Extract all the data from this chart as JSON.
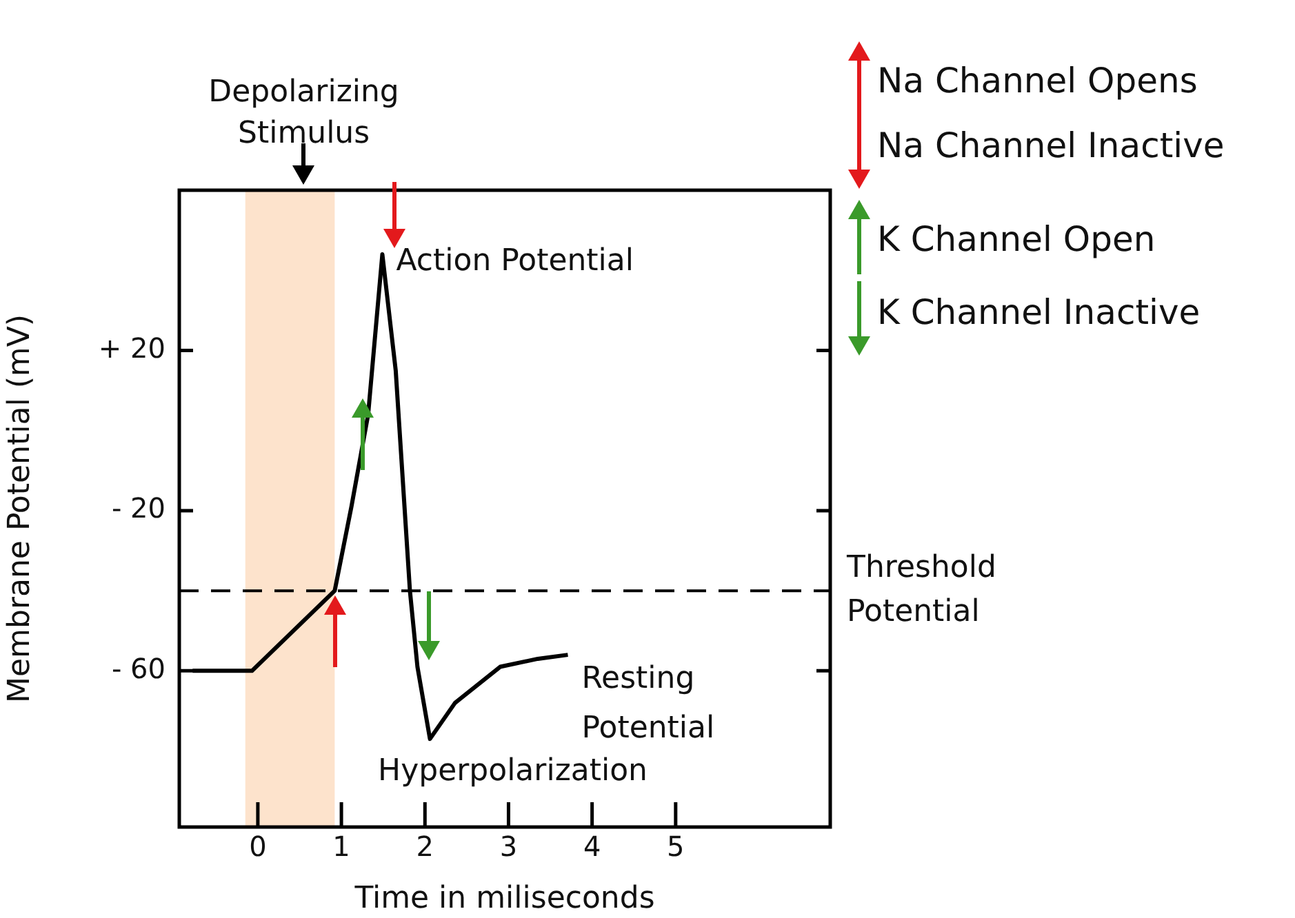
{
  "chart_data": {
    "type": "line",
    "xlabel": "Time in miliseconds",
    "ylabel": "Membrane Potential (mV)",
    "x": [
      -0.78,
      -0.07,
      0.92,
      1.12,
      1.32,
      1.49,
      1.65,
      1.82,
      1.91,
      2.06,
      2.36,
      2.9,
      3.35,
      3.71
    ],
    "series": [
      {
        "color": "#000000",
        "values": [
          -60,
          -60,
          -40,
          -19,
          4,
          44,
          15,
          -40,
          -59,
          -77,
          -68,
          -59,
          -57,
          -56
        ]
      }
    ],
    "xlim": [
      -0.94,
      6.85
    ],
    "xticks": [
      0,
      1,
      2,
      3,
      4,
      5
    ],
    "ylim": [
      -99,
      60
    ],
    "yticks": [
      {
        "value": 20,
        "label": "+ 20"
      },
      {
        "value": -20,
        "label": "- 20"
      },
      {
        "value": -60,
        "label": "- 60"
      }
    ],
    "ref_lines": [
      {
        "axis": "y",
        "value": -40,
        "label": "Threshold Potential",
        "line_style": "dashed",
        "color": "#000000"
      }
    ],
    "bands": [
      {
        "axis": "x",
        "from": -0.15,
        "to": 0.92,
        "label": "Depolarizing Stimulus",
        "color": "#fde3cc"
      }
    ],
    "annotations": [
      "Na Channel Opens",
      "Na Channel Inactive",
      "K Channel Open",
      "K Channel Inactive",
      {
        "text": "Action Potential",
        "x": 1.49,
        "y": 44
      },
      {
        "text": "Resting Potential",
        "x": 3.71,
        "y": -56
      },
      {
        "text": "Hyperpolarization",
        "x": 2.06,
        "y": -77
      }
    ],
    "grid": false,
    "legend": false,
    "marker": "none",
    "line_style": "solid"
  }
}
